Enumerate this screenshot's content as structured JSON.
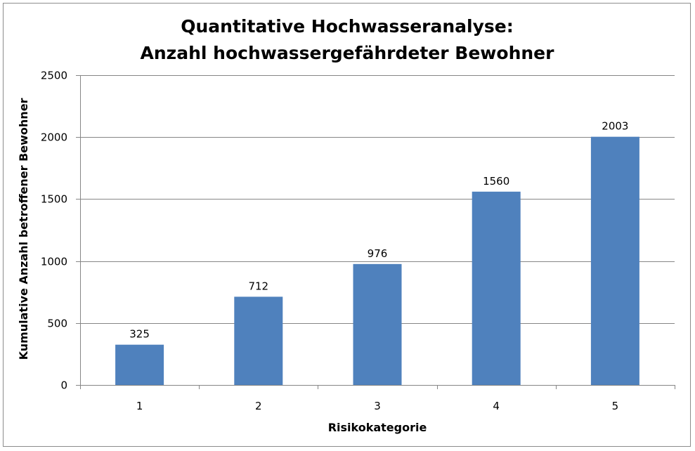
{
  "chart_data": {
    "type": "bar",
    "title": "Quantitative Hochwasseranalyse:",
    "subtitle": "Anzahl hochwassergefährdeter Bewohner",
    "xlabel": "Risikokategorie",
    "ylabel": "Kumulative Anzahl betroffener Bewohner",
    "categories": [
      "1",
      "2",
      "3",
      "4",
      "5"
    ],
    "values": [
      325,
      712,
      976,
      1560,
      2003
    ],
    "data_labels": [
      "325",
      "712",
      "976",
      "1560",
      "2003"
    ],
    "ylim": [
      0,
      2500
    ],
    "yticks": [
      0,
      500,
      1000,
      1500,
      2000,
      2500
    ],
    "ytick_labels": [
      "0",
      "500",
      "1000",
      "1500",
      "2000",
      "2500"
    ],
    "grid": true,
    "legend": "none",
    "bar_color": "#4f81bd",
    "gridline_color": "#868686"
  }
}
